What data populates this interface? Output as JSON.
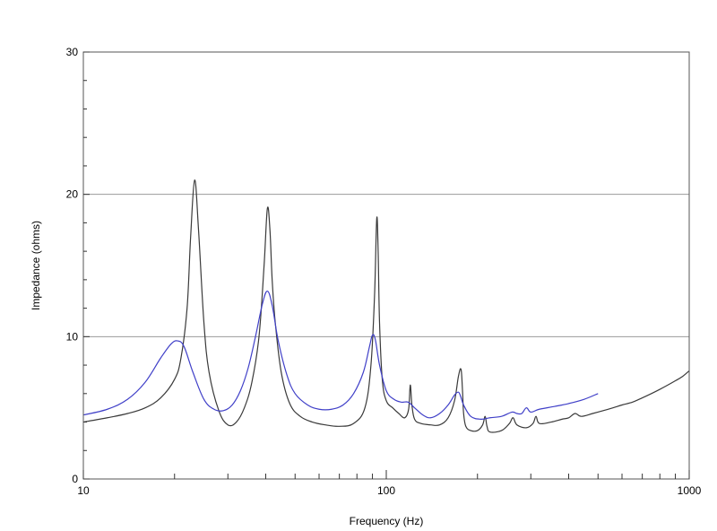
{
  "chart_data": {
    "type": "line",
    "title": "",
    "xlabel": "Frequency (Hz)",
    "ylabel": "Impedance (ohms)",
    "x_scale": "log",
    "xlim": [
      10,
      1000
    ],
    "ylim": [
      0,
      30
    ],
    "x_major_ticks": [
      10,
      100,
      1000
    ],
    "x_tick_labels": [
      "10",
      "100",
      "1000"
    ],
    "y_major_ticks": [
      0,
      10,
      20,
      30
    ],
    "y_tick_labels": [
      "0",
      "10",
      "20",
      "30"
    ],
    "y_minor_step": 2,
    "grid": {
      "horizontal_major": true,
      "vertical": false
    },
    "legend": "none",
    "series": [
      {
        "color": "#3a3a3a",
        "x": [
          10,
          12,
          14,
          16,
          18,
          20,
          21,
          22,
          22.6,
          23.3,
          24,
          25,
          26,
          28,
          30,
          32,
          34,
          36,
          38,
          39.5,
          40.5,
          41.3,
          42,
          43,
          45,
          48,
          52,
          57,
          63,
          70,
          78,
          85,
          89,
          91.5,
          93,
          94,
          95,
          97,
          100,
          105,
          110,
          115,
          118.5,
          120,
          121.5,
          124,
          130,
          140,
          150,
          160,
          168,
          173,
          176.5,
          178.5,
          180,
          183,
          190,
          200,
          208,
          212,
          215,
          220,
          240,
          255,
          262,
          270,
          290,
          305,
          312,
          320,
          350,
          380,
          400,
          420,
          440,
          480,
          520,
          560,
          600,
          650,
          700,
          750,
          800,
          850,
          900,
          950,
          1000
        ],
        "y": [
          4.0,
          4.3,
          4.6,
          5.0,
          5.7,
          7.0,
          8.5,
          12.0,
          17.0,
          21.0,
          17.5,
          11.0,
          7.5,
          4.8,
          3.8,
          4.0,
          5.0,
          6.8,
          10.0,
          15.0,
          19.0,
          17.5,
          14.0,
          11.0,
          7.5,
          5.3,
          4.4,
          4.0,
          3.8,
          3.7,
          3.9,
          5.0,
          8.0,
          13.0,
          18.3,
          16.0,
          11.0,
          7.0,
          5.5,
          5.0,
          4.6,
          4.3,
          4.9,
          6.6,
          5.2,
          4.2,
          3.9,
          3.8,
          3.8,
          4.3,
          5.5,
          7.2,
          7.7,
          6.2,
          4.6,
          3.7,
          3.4,
          3.4,
          3.8,
          4.4,
          3.7,
          3.3,
          3.4,
          3.9,
          4.3,
          3.8,
          3.6,
          3.9,
          4.4,
          3.9,
          4.0,
          4.2,
          4.3,
          4.6,
          4.4,
          4.6,
          4.8,
          5.0,
          5.2,
          5.4,
          5.7,
          6.0,
          6.3,
          6.6,
          6.9,
          7.2,
          7.6
        ]
      },
      {
        "color": "#4040c8",
        "x": [
          10,
          12,
          14,
          16,
          18,
          19.5,
          20.5,
          21.5,
          23,
          25,
          27,
          29,
          31,
          33,
          35,
          37,
          39,
          40.5,
          42,
          44,
          47,
          50,
          55,
          60,
          66,
          72,
          78,
          84,
          88,
          90,
          92,
          95,
          100,
          106,
          112,
          118,
          124,
          132,
          140,
          150,
          160,
          168,
          173,
          176,
          180,
          190,
          205,
          220,
          240,
          260,
          270,
          280,
          290,
          300,
          320,
          360,
          400,
          450,
          500
        ],
        "y": [
          4.5,
          4.9,
          5.6,
          6.8,
          8.5,
          9.5,
          9.7,
          9.3,
          7.5,
          5.6,
          4.9,
          4.8,
          5.2,
          6.2,
          7.8,
          10.0,
          12.3,
          13.2,
          12.2,
          9.7,
          7.3,
          6.0,
          5.2,
          4.9,
          4.9,
          5.2,
          6.0,
          7.5,
          9.3,
          10.1,
          9.8,
          8.0,
          6.2,
          5.6,
          5.4,
          5.4,
          5.0,
          4.5,
          4.3,
          4.6,
          5.2,
          5.9,
          6.1,
          5.8,
          5.2,
          4.4,
          4.2,
          4.3,
          4.4,
          4.7,
          4.6,
          4.6,
          5.0,
          4.7,
          4.9,
          5.1,
          5.3,
          5.6,
          6.0
        ]
      }
    ]
  }
}
